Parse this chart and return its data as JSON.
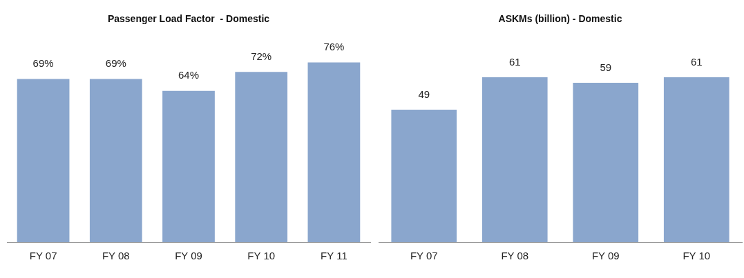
{
  "chart_data": [
    {
      "type": "bar",
      "title": "Passenger Load Factor  - Domestic",
      "categories": [
        "FY 07",
        "FY 08",
        "FY 09",
        "FY 10",
        "FY 11"
      ],
      "values": [
        69,
        69,
        64,
        72,
        76
      ],
      "value_labels": [
        "69%",
        "69%",
        "64%",
        "72%",
        "76%"
      ],
      "color": "#8aa6cd",
      "grid": false,
      "legend": false
    },
    {
      "type": "bar",
      "title": "ASKMs (billion) - Domestic",
      "categories": [
        "FY 07",
        "FY 08",
        "FY 09",
        "FY 10"
      ],
      "values": [
        49,
        61,
        59,
        61
      ],
      "data_labels": true,
      "color": "#8aa6cd",
      "grid": false,
      "legend": false
    }
  ]
}
